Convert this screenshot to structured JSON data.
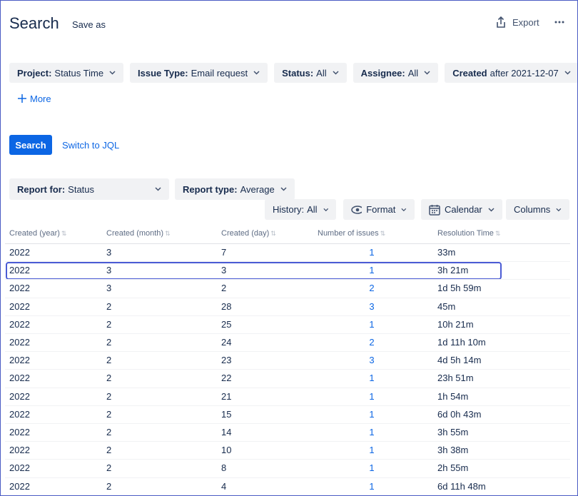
{
  "header": {
    "title": "Search",
    "save_as": "Save as",
    "export": "Export"
  },
  "filters": [
    {
      "label": "Project:",
      "value": "Status Time"
    },
    {
      "label": "Issue Type:",
      "value": "Email request"
    },
    {
      "label": "Status:",
      "value": "All"
    },
    {
      "label": "Assignee:",
      "value": "All"
    },
    {
      "label": "Created",
      "value": "after 2021-12-07"
    }
  ],
  "more": "More",
  "search_button": "Search",
  "switch_jql": "Switch to JQL",
  "report_for": {
    "label": "Report for:",
    "value": "Status"
  },
  "report_type": {
    "label": "Report type:",
    "value": "Average"
  },
  "history": {
    "label": "History:",
    "value": "All"
  },
  "format": "Format",
  "calendar": "Calendar",
  "columns_button": "Columns",
  "table": {
    "columns": [
      "Created (year)",
      "Created (month)",
      "Created (day)",
      "Number of issues",
      "Resolution Time"
    ],
    "rows": [
      [
        2022,
        3,
        7,
        1,
        "33m"
      ],
      [
        2022,
        3,
        3,
        1,
        "3h 21m"
      ],
      [
        2022,
        3,
        2,
        2,
        "1d 5h 59m"
      ],
      [
        2022,
        2,
        28,
        3,
        "45m"
      ],
      [
        2022,
        2,
        25,
        1,
        "10h 21m"
      ],
      [
        2022,
        2,
        24,
        2,
        "1d 11h 10m"
      ],
      [
        2022,
        2,
        23,
        3,
        "4d 5h 14m"
      ],
      [
        2022,
        2,
        22,
        1,
        "23h 51m"
      ],
      [
        2022,
        2,
        21,
        1,
        "1h 54m"
      ],
      [
        2022,
        2,
        15,
        1,
        "6d 0h 43m"
      ],
      [
        2022,
        2,
        14,
        1,
        "3h 55m"
      ],
      [
        2022,
        2,
        10,
        1,
        "3h 38m"
      ],
      [
        2022,
        2,
        8,
        1,
        "2h 55m"
      ],
      [
        2022,
        2,
        4,
        1,
        "6d 11h 48m"
      ]
    ]
  }
}
